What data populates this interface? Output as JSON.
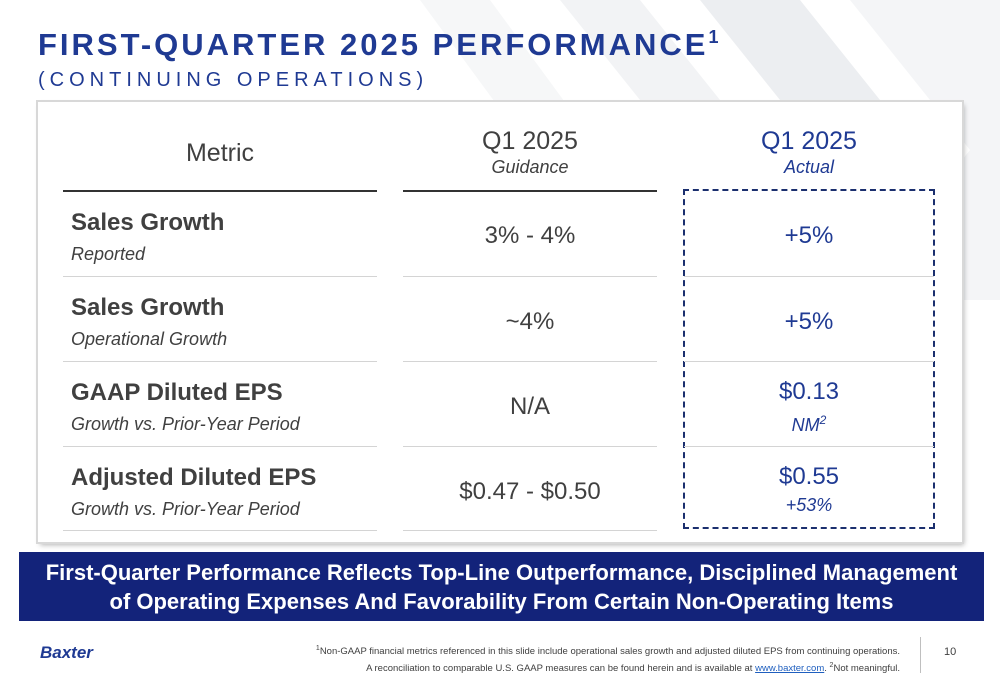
{
  "header": {
    "title": "FIRST-QUARTER 2025 PERFORMANCE",
    "title_sup": "1",
    "subtitle": "(CONTINUING OPERATIONS)"
  },
  "table": {
    "columns": {
      "metric": "Metric",
      "guidance": {
        "label": "Q1 2025",
        "sub": "Guidance"
      },
      "actual": {
        "label": "Q1 2025",
        "sub": "Actual"
      }
    },
    "rows": [
      {
        "metric": "Sales Growth",
        "desc": "Reported",
        "guidance": "3% - 4%",
        "actual": "+5%",
        "actual_sub": "",
        "actual_sup": ""
      },
      {
        "metric": "Sales Growth",
        "desc": "Operational Growth",
        "guidance": "~4%",
        "actual": "+5%",
        "actual_sub": "",
        "actual_sup": ""
      },
      {
        "metric": "GAAP Diluted EPS",
        "desc": "Growth vs. Prior-Year Period",
        "guidance": "N/A",
        "actual": "$0.13",
        "actual_sub": "NM",
        "actual_sup": "2"
      },
      {
        "metric": "Adjusted Diluted EPS",
        "desc": "Growth vs. Prior-Year Period",
        "guidance": "$0.47 - $0.50",
        "actual": "$0.55",
        "actual_sub": "+53%",
        "actual_sup": ""
      }
    ]
  },
  "banner": {
    "line1": "First-Quarter Performance Reflects Top-Line Outperformance, Disciplined Management",
    "line2": "of Operating Expenses And Favorability From Certain Non-Operating Items"
  },
  "footer": {
    "logo": "Baxter",
    "footnote_sup1": "1",
    "footnote_line1": "Non-GAAP financial metrics referenced in this slide include operational sales growth and adjusted diluted EPS from continuing operations.",
    "footnote_line2_pre": "A reconciliation to comparable U.S. GAAP measures can be found herein and is available at ",
    "footnote_link": "www.baxter.com",
    "footnote_line2_mid": ". ",
    "footnote_sup2": "2",
    "footnote_line2_post": "Not meaningful.",
    "page_number": "10"
  },
  "colors": {
    "brand_blue": "#1f3a93",
    "banner_navy": "#13237a",
    "text_gray": "#404040"
  }
}
